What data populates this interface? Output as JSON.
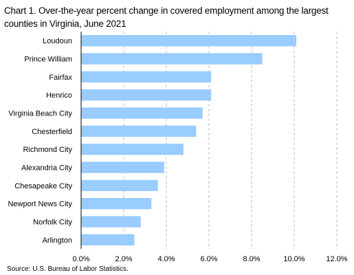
{
  "title": "Chart 1. Over-the-year percent change in covered employment among the largest counties in Virginia, June 2021",
  "source": "Source:  U.S. Bureau of Labor Statistics.",
  "colors": {
    "bar": "#99ccff",
    "grid": "#bfbfbf",
    "axis": "#000000"
  },
  "chart_data": {
    "type": "bar",
    "orientation": "horizontal",
    "title": "Chart 1. Over-the-year percent change in covered employment among the largest counties in Virginia, June 2021",
    "xlabel": "",
    "ylabel": "",
    "categories": [
      "Loudoun",
      "Prince William",
      "Fairfax",
      "Henrico",
      "Virginia Beach City",
      "Chesterfield",
      "Richmond City",
      "Alexandria City",
      "Chesapeake City",
      "Newport News City",
      "Norfolk City",
      "Arlington"
    ],
    "values": [
      10.1,
      8.5,
      6.1,
      6.1,
      5.7,
      5.4,
      4.8,
      3.9,
      3.6,
      3.3,
      2.8,
      2.5
    ],
    "xlim": [
      0,
      12
    ],
    "x_ticks": [
      "0.0%",
      "2.0%",
      "4.0%",
      "6.0%",
      "8.0%",
      "10.0%",
      "12.0%"
    ],
    "x_tick_values": [
      0,
      2,
      4,
      6,
      8,
      10,
      12
    ],
    "grid": "vertical dashed",
    "legend": "none"
  }
}
